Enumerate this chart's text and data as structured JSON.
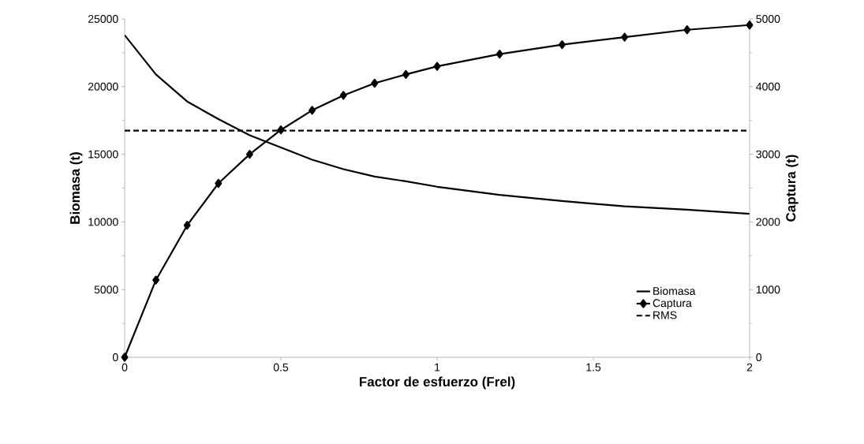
{
  "chart_data": {
    "type": "line",
    "xlabel": "Factor de esfuerzo (Frel)",
    "ylabel": "Biomasa (t)",
    "y2label": "Captura (t)",
    "xlim": [
      0,
      2
    ],
    "xticks": [
      0,
      0.5,
      1,
      1.5,
      2
    ],
    "ylim": [
      0,
      25000
    ],
    "yticks": [
      0,
      5000,
      10000,
      15000,
      20000,
      25000
    ],
    "y2lim": [
      0,
      5000
    ],
    "y2ticks": [
      0,
      1000,
      2000,
      3000,
      4000,
      5000
    ],
    "grid": false,
    "legend": "bottom right",
    "series": [
      {
        "name": "Biomasa",
        "color": "#000000",
        "marker": "none",
        "line_style": "solid",
        "x": [
          0,
          0.1,
          0.2,
          0.3,
          0.4,
          0.5,
          0.6,
          0.7,
          0.8,
          0.9,
          1.0,
          1.2,
          1.4,
          1.6,
          1.8,
          2.0
        ],
        "values": [
          23800,
          20900,
          18900,
          17600,
          16400,
          15500,
          14600,
          13900,
          13350,
          13000,
          12600,
          12000,
          11550,
          11150,
          10900,
          10600
        ]
      },
      {
        "name": "Captura",
        "color": "#000000",
        "marker": "diamond",
        "line_style": "solid",
        "axis": "y2",
        "x": [
          0,
          0.1,
          0.2,
          0.3,
          0.4,
          0.5,
          0.6,
          0.7,
          0.8,
          0.9,
          1.0,
          1.2,
          1.4,
          1.6,
          1.8,
          2.0
        ],
        "values": [
          0,
          1140,
          1950,
          2570,
          3000,
          3360,
          3650,
          3870,
          4050,
          4180,
          4300,
          4480,
          4620,
          4730,
          4840,
          4910
        ]
      },
      {
        "name": "RMS",
        "color": "#000000",
        "marker": "none",
        "line_style": "dashed",
        "x": [
          0,
          2
        ],
        "values": [
          16750,
          16750
        ]
      }
    ]
  }
}
